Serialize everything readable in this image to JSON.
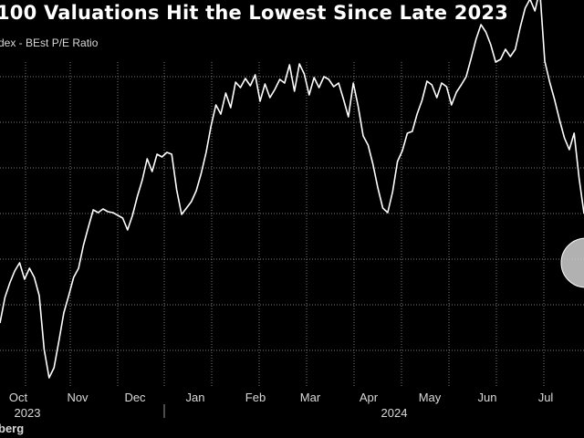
{
  "chart_data": {
    "type": "line",
    "title": "100 Valuations Hit the Lowest Since Late 2023",
    "subtitle": "dex - BEst P/E Ratio",
    "source": "berg",
    "xlabel": "",
    "ylabel": "",
    "x_month_labels": [
      "Oct",
      "Nov",
      "Dec",
      "Jan",
      "Feb",
      "Mar",
      "Apr",
      "May",
      "Jun",
      "Jul"
    ],
    "x_year_labels": [
      "2023",
      "2024"
    ],
    "grid": true,
    "line_color": "#ffffff",
    "marker_color": "#d0d0d0",
    "series": [
      {
        "values": [
          -0.4,
          0.16,
          0.48,
          0.74,
          0.92,
          0.56,
          0.8,
          0.6,
          0.2,
          -0.98,
          -1.6,
          -1.38,
          -0.8,
          -0.18,
          0.2,
          0.6,
          0.8,
          1.3,
          1.7,
          2.08,
          2.02,
          2.1,
          2.04,
          2.02,
          1.96,
          1.9,
          1.64,
          1.96,
          2.38,
          2.74,
          3.2,
          2.92,
          3.3,
          3.24,
          3.34,
          3.3,
          2.52,
          1.98,
          2.12,
          2.26,
          2.5,
          2.88,
          3.34,
          3.92,
          4.38,
          4.18,
          4.64,
          4.32,
          4.88,
          4.76,
          4.96,
          4.8,
          5.04,
          4.46,
          4.84,
          4.54,
          4.72,
          4.94,
          4.86,
          5.26,
          4.68,
          5.28,
          5.06,
          4.6,
          4.98,
          4.76,
          5.0,
          4.94,
          4.78,
          4.86,
          4.5,
          4.12,
          4.86,
          4.34,
          3.7,
          3.5,
          3.08,
          2.56,
          2.12,
          2.02,
          2.48,
          3.14,
          3.38,
          3.76,
          3.8,
          4.18,
          4.48,
          4.9,
          4.82,
          4.54,
          4.86,
          4.78,
          4.38,
          4.66,
          4.82,
          5.0,
          5.4,
          5.82,
          6.14,
          5.98,
          5.7,
          5.32,
          5.38,
          5.6,
          5.44,
          5.6,
          6.08,
          6.5,
          6.7,
          6.44,
          6.9,
          5.34,
          4.88,
          4.5,
          4.06,
          3.66,
          3.4,
          3.76,
          2.78,
          2.0
        ]
      }
    ],
    "highlight": {
      "label": "latest"
    }
  }
}
